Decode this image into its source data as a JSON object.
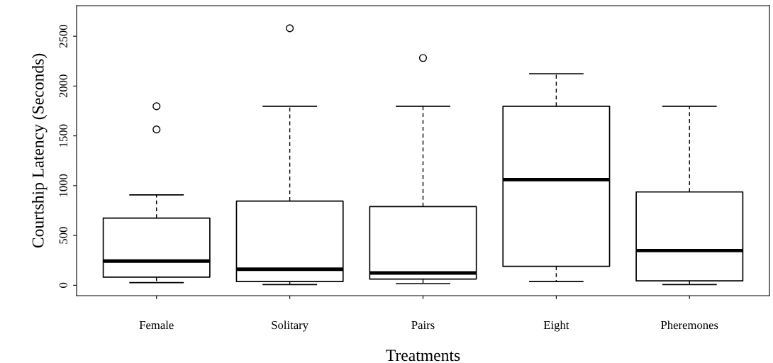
{
  "chart_data": {
    "type": "box",
    "xlabel": "Treatments",
    "ylabel": "Courtship Latency (Seconds)",
    "categories": [
      "Female",
      "Solitary",
      "Pairs",
      "Eight",
      "Pheremones"
    ],
    "boxes": [
      {
        "low": 27,
        "q1": 82,
        "median": 243,
        "q3": 674,
        "high": 907,
        "outliers": [
          1564,
          1797
        ]
      },
      {
        "low": 7,
        "q1": 37,
        "median": 161,
        "q3": 845,
        "high": 1797,
        "outliers": [
          2580
        ]
      },
      {
        "low": 17,
        "q1": 62,
        "median": 124,
        "q3": 790,
        "high": 1797,
        "outliers": [
          2282
        ]
      },
      {
        "low": 37,
        "q1": 191,
        "median": 1061,
        "q3": 1797,
        "high": 2124
      },
      {
        "low": 7,
        "q1": 45,
        "median": 349,
        "q3": 937,
        "high": 1797
      }
    ],
    "ylim": [
      -104,
      2807
    ],
    "yticks": [
      0,
      500,
      1000,
      1500,
      2000,
      2500
    ],
    "grid": false
  }
}
